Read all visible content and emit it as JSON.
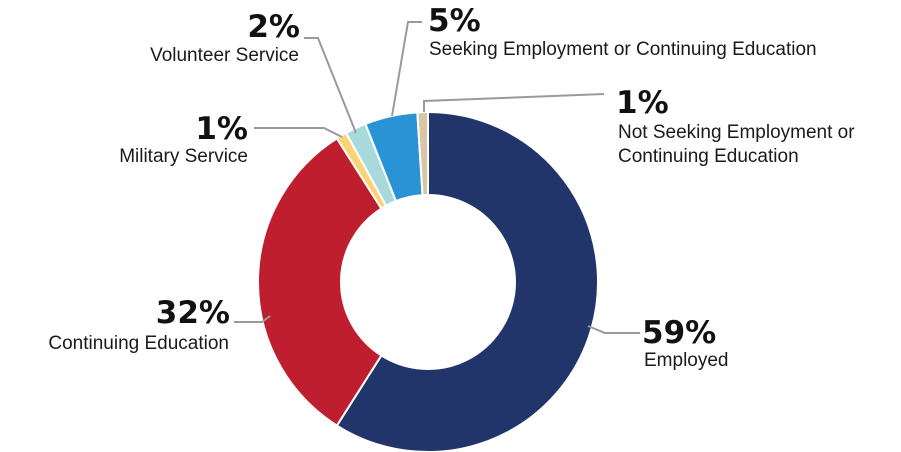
{
  "chart_data": {
    "type": "pie",
    "donut": true,
    "title": "",
    "categories": [
      "Employed",
      "Continuing Education",
      "Military Service",
      "Volunteer Service",
      "Seeking Employment or Continuing Education",
      "Not Seeking Employment or Continuing Education"
    ],
    "values": [
      59,
      32,
      1,
      2,
      5,
      1
    ],
    "labels": [
      {
        "pct": "59%",
        "lines": [
          "Employed"
        ]
      },
      {
        "pct": "32%",
        "lines": [
          "Continuing Education"
        ]
      },
      {
        "pct": "1%",
        "lines": [
          "Military Service"
        ]
      },
      {
        "pct": "2%",
        "lines": [
          "Volunteer Service"
        ]
      },
      {
        "pct": "5%",
        "lines": [
          "Seeking Employment or Continuing Education"
        ]
      },
      {
        "pct": "1%",
        "lines": [
          "Not Seeking Employment or",
          "Continuing Education"
        ]
      }
    ],
    "colors": [
      "#21356b",
      "#be1e2d",
      "#fcd374",
      "#a8dadb",
      "#2a93d5",
      "#d7c7a4"
    ],
    "leader_color": "#9a9a9a"
  }
}
